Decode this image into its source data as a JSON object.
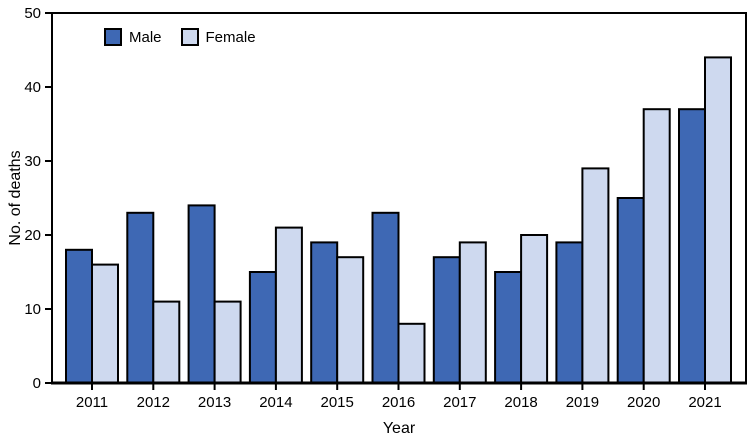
{
  "chart_data": {
    "type": "bar",
    "title": "",
    "categories": [
      "2011",
      "2012",
      "2013",
      "2014",
      "2015",
      "2016",
      "2017",
      "2018",
      "2019",
      "2020",
      "2021"
    ],
    "series": [
      {
        "name": "Male",
        "color": "#3E68B4",
        "values": [
          18,
          23,
          24,
          15,
          19,
          23,
          17,
          15,
          19,
          25,
          37
        ]
      },
      {
        "name": "Female",
        "color": "#CED9EF",
        "values": [
          16,
          11,
          11,
          21,
          17,
          8,
          19,
          20,
          29,
          37,
          44
        ]
      }
    ],
    "xlabel": "Year",
    "ylabel": "No. of deaths",
    "ylim": [
      0,
      50
    ],
    "yticks": [
      0,
      10,
      20,
      30,
      40,
      50
    ],
    "legend_position": "top-left-inside",
    "grid": false,
    "bar_outline_color": "#000000",
    "axis_color": "#000000",
    "background_color": "#FFFFFF"
  }
}
